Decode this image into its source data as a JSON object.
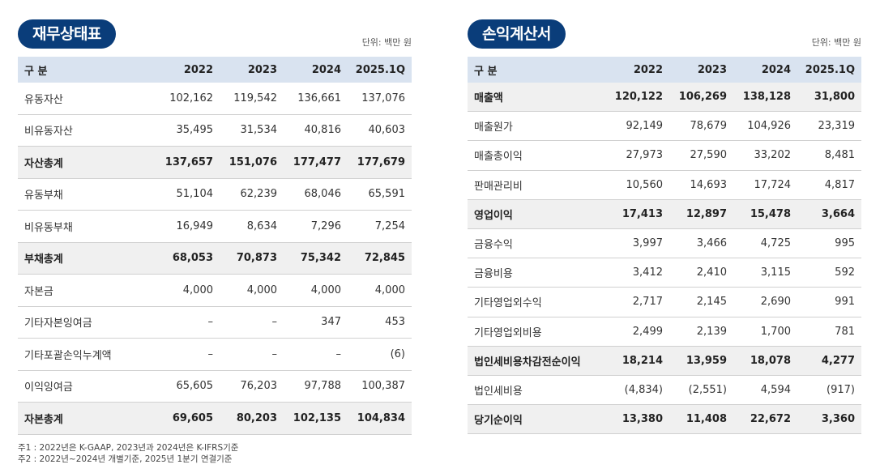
{
  "balance": {
    "title": "재무상태표",
    "unit": "단위: 백만 원",
    "columns": [
      "구 분",
      "2022",
      "2023",
      "2024",
      "2025.1Q"
    ],
    "rows": [
      {
        "cells": [
          "유동자산",
          "102,162",
          "119,542",
          "136,661",
          "137,076"
        ],
        "total": false
      },
      {
        "cells": [
          "비유동자산",
          "35,495",
          "31,534",
          "40,816",
          "40,603"
        ],
        "total": false
      },
      {
        "cells": [
          "자산총계",
          "137,657",
          "151,076",
          "177,477",
          "177,679"
        ],
        "total": true
      },
      {
        "cells": [
          "유동부채",
          "51,104",
          "62,239",
          "68,046",
          "65,591"
        ],
        "total": false
      },
      {
        "cells": [
          "비유동부채",
          "16,949",
          "8,634",
          "7,296",
          "7,254"
        ],
        "total": false
      },
      {
        "cells": [
          "부채총계",
          "68,053",
          "70,873",
          "75,342",
          "72,845"
        ],
        "total": true
      },
      {
        "cells": [
          "자본금",
          "4,000",
          "4,000",
          "4,000",
          "4,000"
        ],
        "total": false
      },
      {
        "cells": [
          "기타자본잉여금",
          "–",
          "–",
          "347",
          "453"
        ],
        "total": false
      },
      {
        "cells": [
          "기타포괄손익누계액",
          "–",
          "–",
          "–",
          "(6)"
        ],
        "total": false
      },
      {
        "cells": [
          "이익잉여금",
          "65,605",
          "76,203",
          "97,788",
          "100,387"
        ],
        "total": false
      },
      {
        "cells": [
          "자본총계",
          "69,605",
          "80,203",
          "102,135",
          "104,834"
        ],
        "total": true
      }
    ]
  },
  "income": {
    "title": "손익계산서",
    "unit": "단위: 백만 원",
    "columns": [
      "구 분",
      "2022",
      "2023",
      "2024",
      "2025.1Q"
    ],
    "rows": [
      {
        "cells": [
          "매출액",
          "120,122",
          "106,269",
          "138,128",
          "31,800"
        ],
        "total": true
      },
      {
        "cells": [
          "매출원가",
          "92,149",
          "78,679",
          "104,926",
          "23,319"
        ],
        "total": false
      },
      {
        "cells": [
          "매출총이익",
          "27,973",
          "27,590",
          "33,202",
          "8,481"
        ],
        "total": false
      },
      {
        "cells": [
          "판매관리비",
          "10,560",
          "14,693",
          "17,724",
          "4,817"
        ],
        "total": false
      },
      {
        "cells": [
          "영업이익",
          "17,413",
          "12,897",
          "15,478",
          "3,664"
        ],
        "total": true
      },
      {
        "cells": [
          "금융수익",
          "3,997",
          "3,466",
          "4,725",
          "995"
        ],
        "total": false
      },
      {
        "cells": [
          "금융비용",
          "3,412",
          "2,410",
          "3,115",
          "592"
        ],
        "total": false
      },
      {
        "cells": [
          "기타영업외수익",
          "2,717",
          "2,145",
          "2,690",
          "991"
        ],
        "total": false
      },
      {
        "cells": [
          "기타영업외비용",
          "2,499",
          "2,139",
          "1,700",
          "781"
        ],
        "total": false
      },
      {
        "cells": [
          "법인세비용차감전순이익",
          "18,214",
          "13,959",
          "18,078",
          "4,277"
        ],
        "total": true
      },
      {
        "cells": [
          "법인세비용",
          "(4,834)",
          "(2,551)",
          "4,594",
          "(917)"
        ],
        "total": false
      },
      {
        "cells": [
          "당기순이익",
          "13,380",
          "11,408",
          "22,672",
          "3,360"
        ],
        "total": true
      }
    ]
  },
  "notes": [
    "주1 : 2022년은 K-GAAP, 2023년과 2024년은 K-IFRS기준",
    "주2 : 2022년~2024년 개별기준, 2025년 1분기 연결기준"
  ],
  "colors": {
    "pill": "#0a3d7a",
    "header_bg": "#d9e3f0",
    "total_bg": "#f0f0f0"
  }
}
